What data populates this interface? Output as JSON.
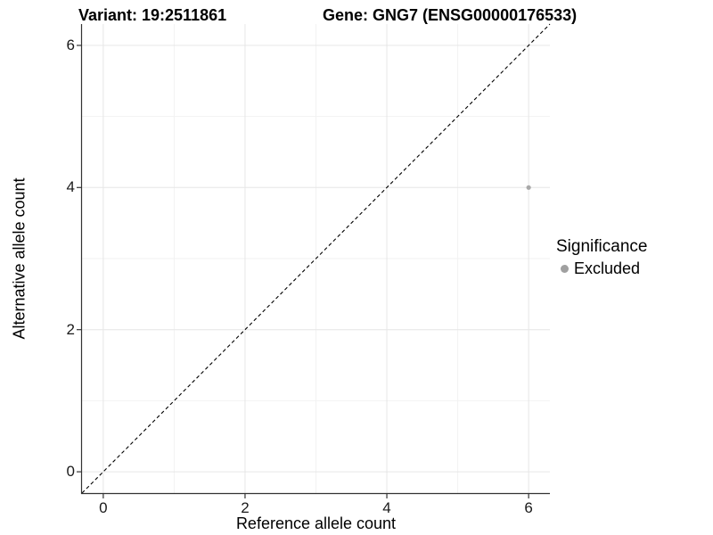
{
  "header": {
    "variant_title": "Variant: 19:2511861",
    "gene_title": "Gene: GNG7 (ENSG00000176533)"
  },
  "chart_data": {
    "type": "scatter",
    "titles": {
      "variant": "Variant: 19:2511861",
      "gene": "Gene: GNG7 (ENSG00000176533)"
    },
    "xlabel": "Reference allele count",
    "ylabel": "Alternative allele count",
    "x_axis": {
      "range": [
        -0.3,
        6.3
      ],
      "ticks": [
        0,
        2,
        4,
        6
      ],
      "minor_ticks": [
        1,
        3,
        5
      ]
    },
    "y_axis": {
      "range": [
        -0.3,
        6.3
      ],
      "ticks": [
        0,
        2,
        4,
        6
      ],
      "minor_ticks": [
        1,
        3,
        5
      ]
    },
    "grid": true,
    "reference_line": {
      "type": "identity",
      "slope": 1,
      "intercept": 0,
      "linetype": "dashed",
      "color": "#000000"
    },
    "series": [
      {
        "name": "Excluded",
        "color": "#a8a8a8",
        "points": [
          {
            "x": 6,
            "y": 4
          }
        ]
      }
    ],
    "legend": {
      "title": "Significance",
      "position": "right",
      "items": [
        {
          "label": "Excluded",
          "color": "#a0a0a0",
          "marker": "circle"
        }
      ]
    },
    "colors": {
      "grid_major": "#e6e6e6",
      "grid_minor": "#f2f2f2",
      "axis_line": "#333333",
      "text": "#000000",
      "background": "#ffffff"
    }
  }
}
